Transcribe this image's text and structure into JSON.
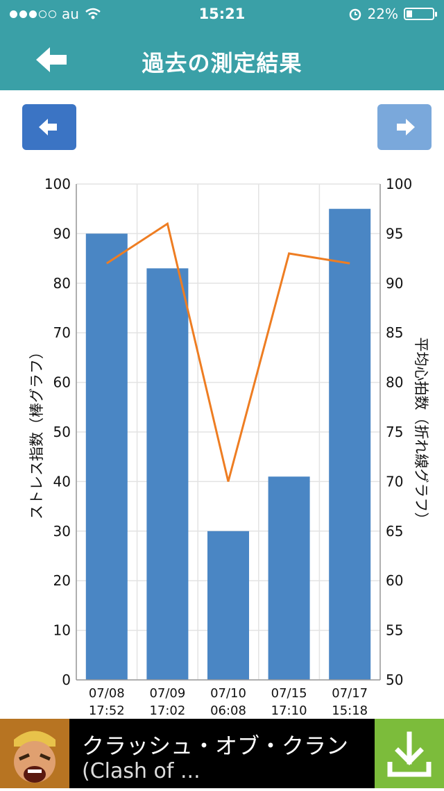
{
  "status": {
    "carrier": "au",
    "time": "15:21",
    "battery_text": "22%",
    "battery_level": 0.22,
    "signal_bars": 3,
    "signal_total": 5
  },
  "header": {
    "title": "過去の測定結果",
    "back_icon": "left-arrow-icon"
  },
  "nav": {
    "prev_icon": "arrow-left-icon",
    "next_icon": "arrow-right-icon"
  },
  "colors": {
    "teal": "#3aa0a7",
    "bar": "#4a86c4",
    "line": "#ee7d22",
    "prev_button": "#3b74c4",
    "next_button": "#7aa8db"
  },
  "chart_data": {
    "type": "bar",
    "categories": [
      "07/08\n17:52",
      "07/09\n17:02",
      "07/10\n06:08",
      "07/15\n17:10",
      "07/17\n15:18"
    ],
    "x_labels": [
      {
        "date": "07/08",
        "time": "17:52"
      },
      {
        "date": "07/09",
        "time": "17:02"
      },
      {
        "date": "07/10",
        "time": "06:08"
      },
      {
        "date": "07/15",
        "time": "17:10"
      },
      {
        "date": "07/17",
        "time": "15:18"
      }
    ],
    "series": [
      {
        "type": "bar",
        "axis": "left",
        "values": [
          90,
          83,
          30,
          41,
          95
        ]
      },
      {
        "type": "line",
        "axis": "right",
        "values": [
          92,
          96,
          70,
          93,
          92
        ]
      }
    ],
    "ylabel": "ストレス指数（棒グラフ）",
    "y2label": "平均心拍数（折れ線グラフ）",
    "ylim": [
      0,
      100
    ],
    "y2lim": [
      50,
      100
    ],
    "yticks": [
      0,
      10,
      20,
      30,
      40,
      50,
      60,
      70,
      80,
      90,
      100
    ],
    "y2ticks": [
      50,
      55,
      60,
      65,
      70,
      75,
      80,
      85,
      90,
      95,
      100
    ],
    "grid": true
  },
  "ad": {
    "title": "クラッシュ・オブ・クラン",
    "subtitle": "(Clash of ...",
    "download_icon": "download-icon"
  }
}
